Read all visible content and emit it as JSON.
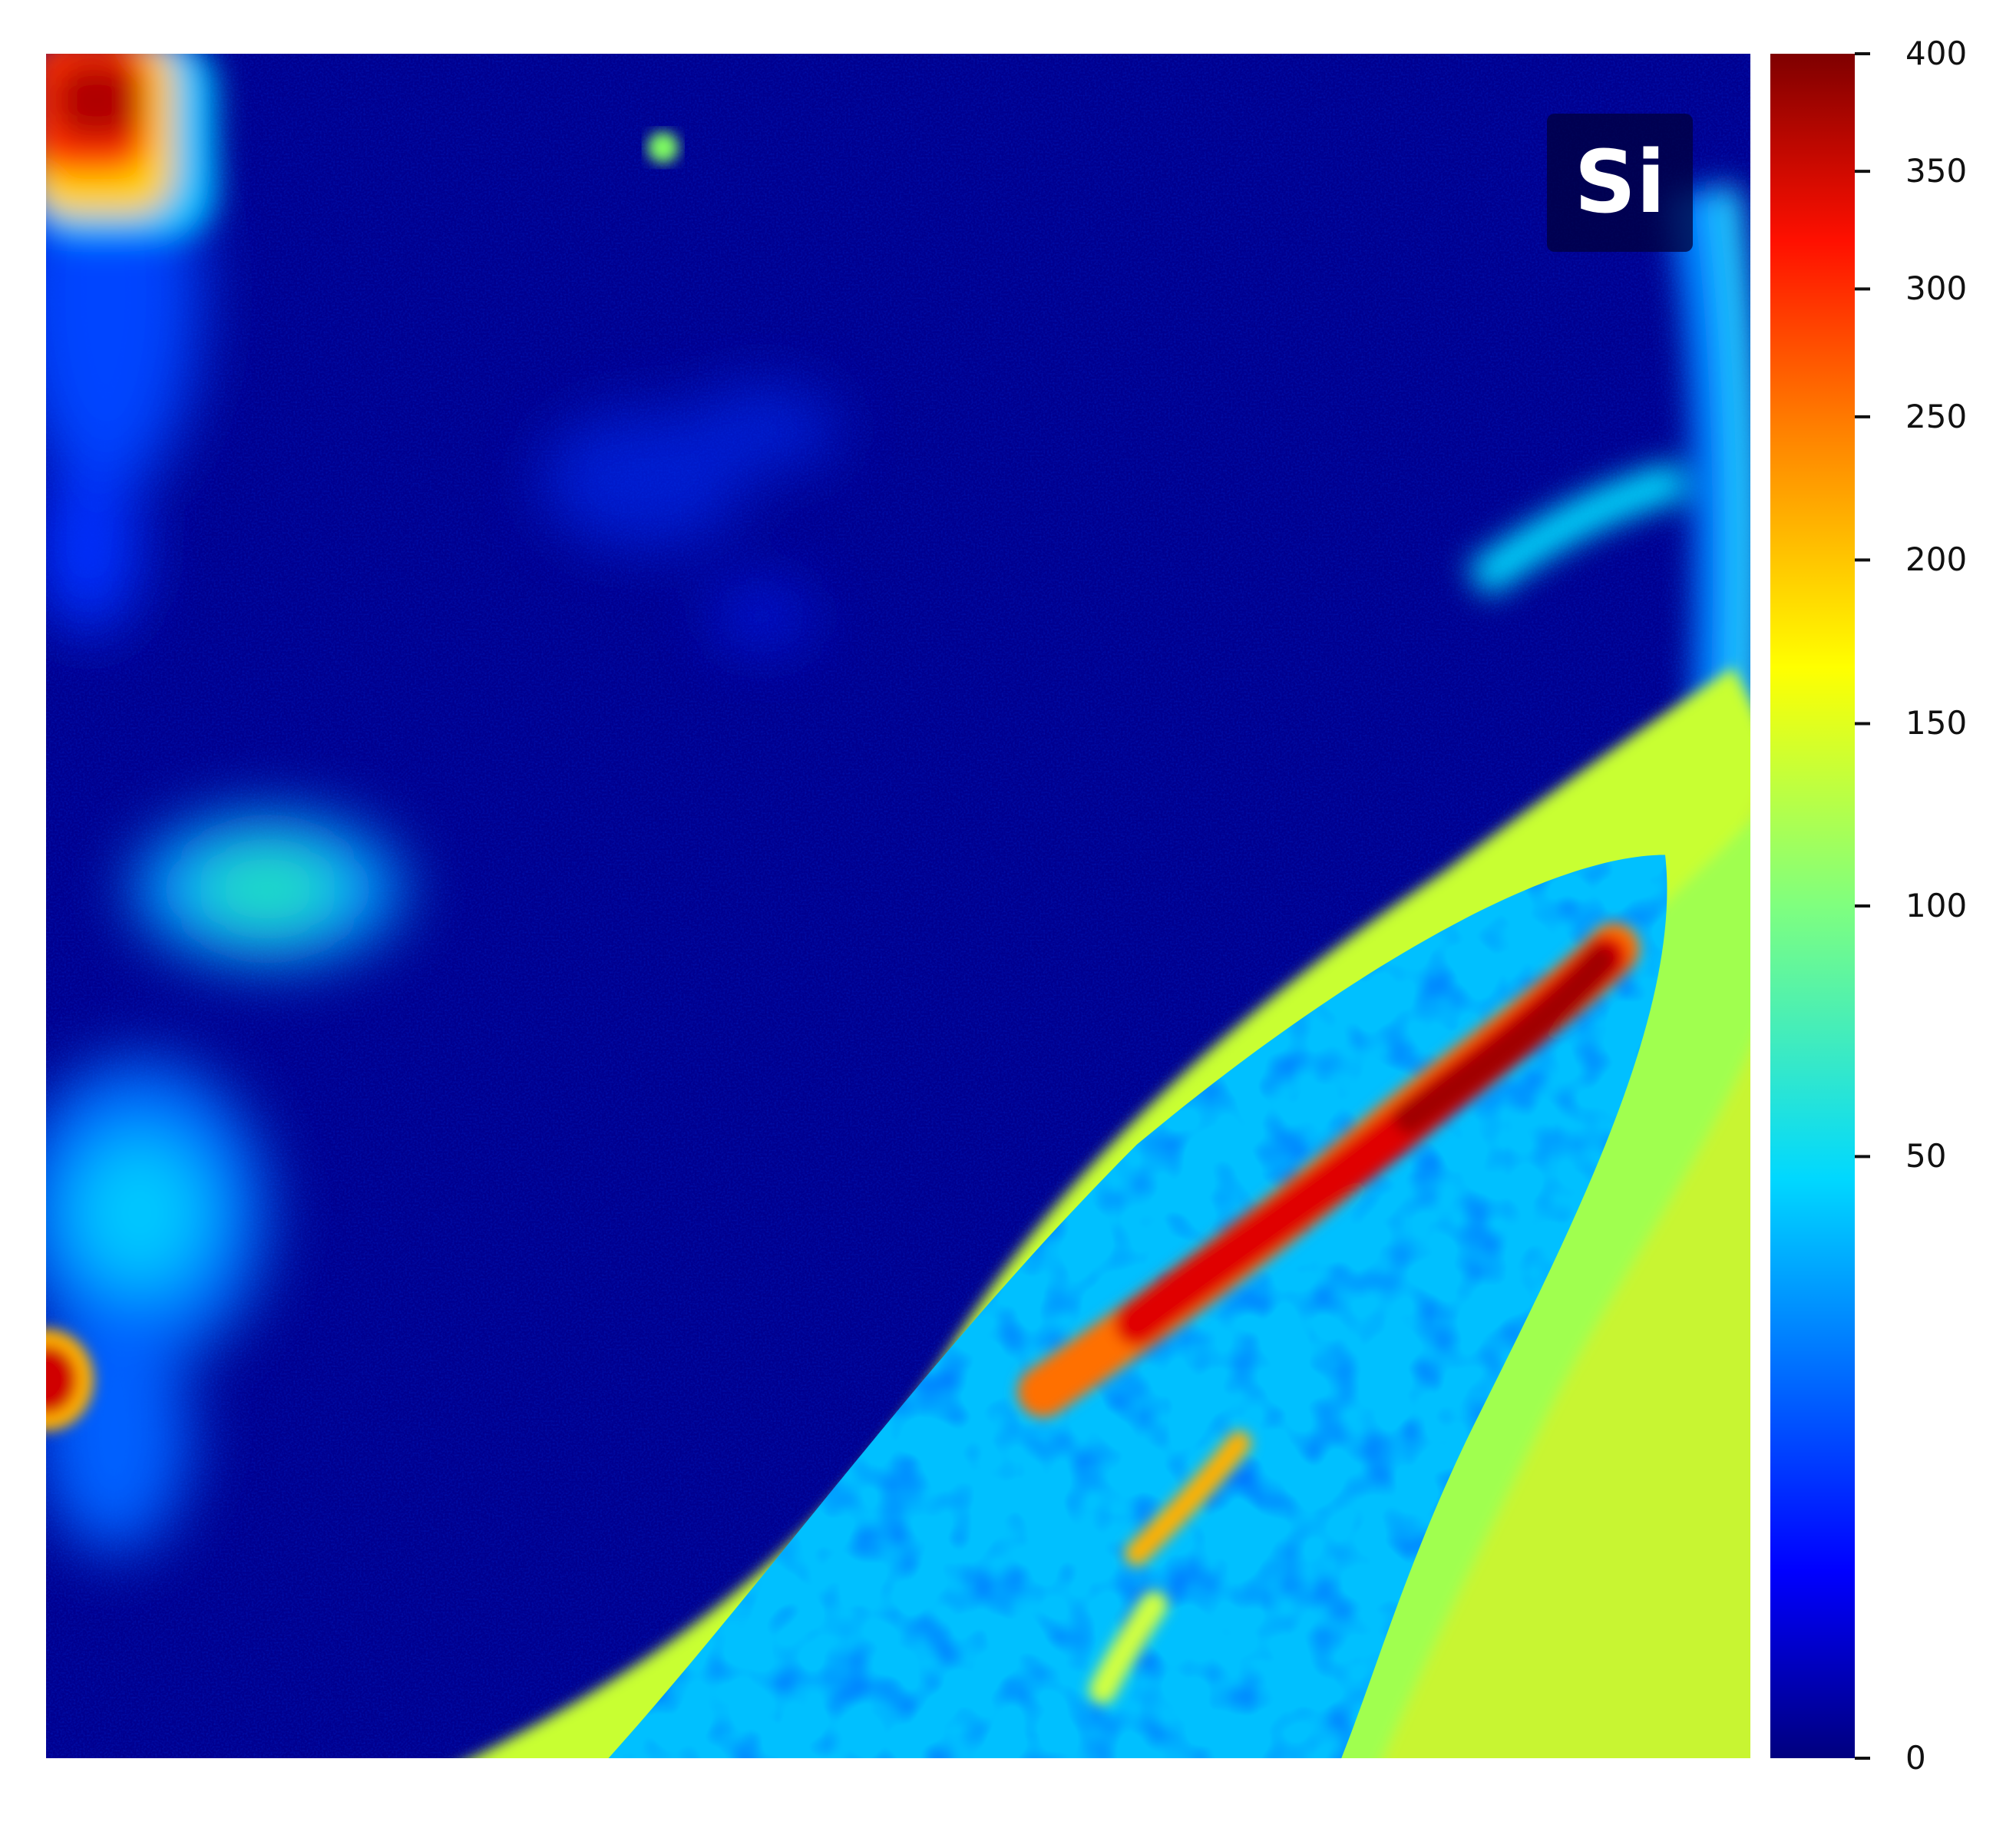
{
  "chart_data": {
    "type": "heatmap",
    "title": "",
    "xlabel": "",
    "ylabel": "",
    "annotation": "Si",
    "colormap": "jet",
    "colorbar": {
      "scale": "power-law (non-linear)",
      "range": [
        0,
        400
      ],
      "ticks": [
        0,
        50,
        100,
        150,
        200,
        250,
        300,
        350,
        400
      ],
      "tick_labels": [
        "0",
        "50",
        "100",
        "150",
        "200",
        "250",
        "300",
        "350",
        "400"
      ],
      "tick_positions_fraction": [
        0.0,
        0.353,
        0.5,
        0.607,
        0.703,
        0.787,
        0.862,
        0.931,
        1.0
      ]
    },
    "regions": [
      {
        "name": "background",
        "value": 12
      },
      {
        "name": "faint diffuse patch upper-center",
        "value": 30
      },
      {
        "name": "top-left corner hot spot",
        "value": 340
      },
      {
        "name": "left-edge hot spot",
        "value": 330
      },
      {
        "name": "left-edge diffuse band",
        "value": 45
      },
      {
        "name": "curved outer rim band",
        "value": 150
      },
      {
        "name": "inner porous region",
        "value": 60
      },
      {
        "name": "diagonal hot streak",
        "value": 360
      },
      {
        "name": "secondary streak",
        "value": 220
      },
      {
        "name": "upper-right linear feature",
        "value": 70
      }
    ],
    "grid": false,
    "legend": "colorbar-right"
  }
}
